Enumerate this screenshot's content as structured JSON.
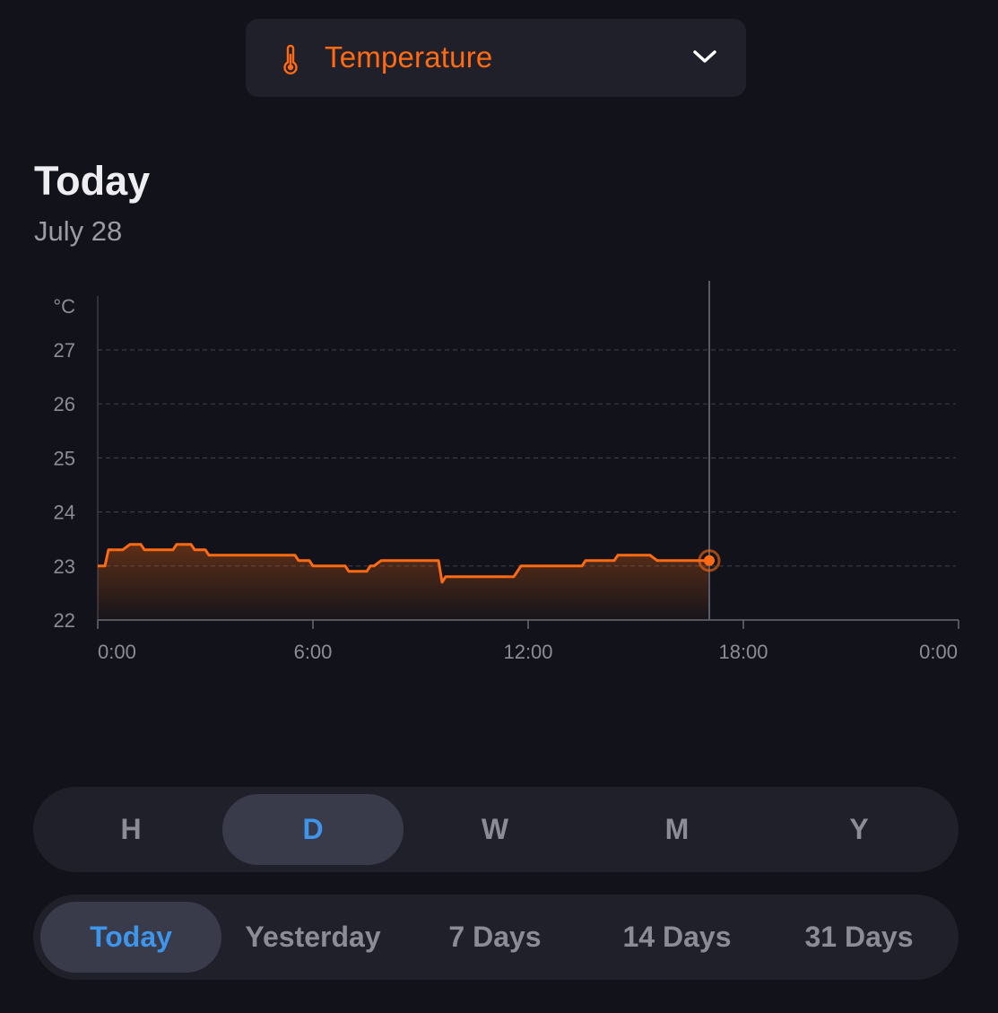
{
  "metric_selector": {
    "label": "Temperature",
    "icon": "thermometer-icon",
    "accent_color": "#ff6a13"
  },
  "period": {
    "title": "Today",
    "date": "July 28"
  },
  "chart_data": {
    "type": "area",
    "ylabel": "°C",
    "xlabel": "",
    "y_ticks": [
      "22",
      "23",
      "24",
      "25",
      "26",
      "27"
    ],
    "ylim": [
      22,
      28
    ],
    "x_ticks": [
      "0:00",
      "6:00",
      "12:00",
      "18:00",
      "0:00"
    ],
    "x_tick_hours": [
      0,
      6,
      12,
      18,
      24
    ],
    "xlim_hours": [
      0,
      24
    ],
    "grid": "horizontal-dashed",
    "color": "#ff6a13",
    "cursor_hour": 17.05,
    "cursor_value": 23.1,
    "series": [
      {
        "x_hours": [
          0,
          0.2,
          0.3,
          0.7,
          0.9,
          1.2,
          1.3,
          2.1,
          2.2,
          2.6,
          2.7,
          3.0,
          3.1,
          5.5,
          5.6,
          5.9,
          6.0,
          6.9,
          7.0,
          7.5,
          7.6,
          7.7,
          7.9,
          9.5,
          9.6,
          9.7,
          11.6,
          11.8,
          13.5,
          13.6,
          14.4,
          14.5,
          15.4,
          15.6,
          17.05
        ],
        "values": [
          23.0,
          23.0,
          23.3,
          23.3,
          23.4,
          23.4,
          23.3,
          23.3,
          23.4,
          23.4,
          23.3,
          23.3,
          23.2,
          23.2,
          23.1,
          23.1,
          23.0,
          23.0,
          22.9,
          22.9,
          23.0,
          23.0,
          23.1,
          23.1,
          22.7,
          22.8,
          22.8,
          23.0,
          23.0,
          23.1,
          23.1,
          23.2,
          23.2,
          23.1,
          23.1
        ]
      }
    ]
  },
  "granularity": {
    "items": [
      "H",
      "D",
      "W",
      "M",
      "Y"
    ],
    "selected": "D"
  },
  "range": {
    "items": [
      "Today",
      "Yesterday",
      "7 Days",
      "14 Days",
      "31 Days"
    ],
    "selected": "Today"
  },
  "colors": {
    "background": "#12131a",
    "panel": "#1f2029",
    "selected_pill": "#3a3b4a",
    "selected_text": "#3d95ec",
    "muted_text": "#8b8c96"
  }
}
